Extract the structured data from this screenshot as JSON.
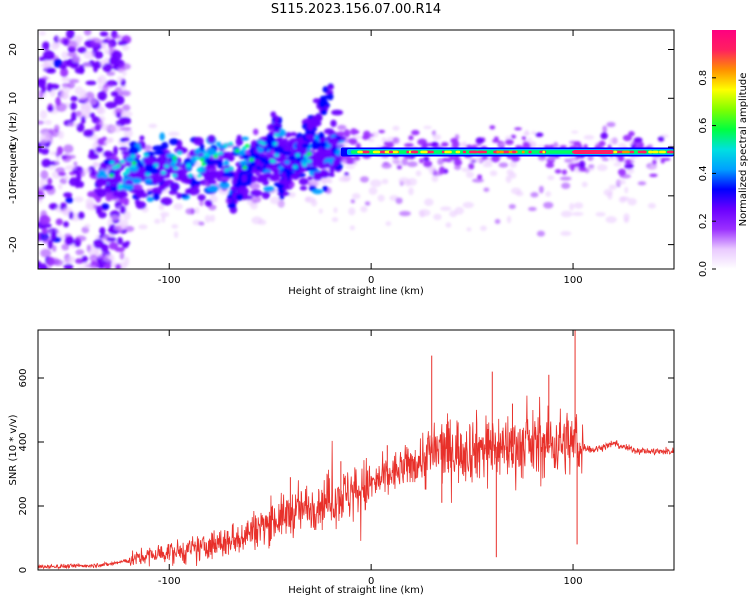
{
  "figure": {
    "title": "S115.2023.156.07.00.R14"
  },
  "chart_data": [
    {
      "type": "heatmap",
      "title": "",
      "xlabel": "Height of straight line (km)",
      "ylabel": "Frequency (Hz)",
      "xlim": [
        -165,
        150
      ],
      "ylim": [
        -25,
        24
      ],
      "xticks": [
        -100,
        0,
        100
      ],
      "yticks": [
        -20,
        -10,
        0,
        10,
        20
      ],
      "colorbar": {
        "label": "Normalized spectral amplitude",
        "range": [
          0.0,
          1.0
        ],
        "ticks": [
          0.0,
          0.2,
          0.4,
          0.6,
          0.8
        ],
        "colormap": [
          "#ffffff",
          "#e9c9ff",
          "#9b30ff",
          "#6a00ff",
          "#0000ff",
          "#00a0ff",
          "#00e0e0",
          "#00ff40",
          "#80ff00",
          "#ffff00",
          "#ff9000",
          "#ff2060",
          "#ff0080"
        ]
      },
      "features": {
        "stable_tone_frequency_hz": -1.0,
        "stable_tone_start_km": -15,
        "diffuse_region_km": [
          -165,
          -130
        ],
        "chirp_segments": [
          {
            "from_km": -70,
            "to_km": -45,
            "from_hz": -12,
            "to_hz": 6
          },
          {
            "from_km": -45,
            "to_km": -20,
            "from_hz": -9,
            "to_hz": 12
          }
        ]
      }
    },
    {
      "type": "line",
      "title": "",
      "xlabel": "Height of straight line (km)",
      "ylabel": "SNR (10 * v/v)",
      "xlim": [
        -165,
        150
      ],
      "ylim": [
        0,
        750
      ],
      "xticks": [
        -100,
        0,
        100
      ],
      "yticks": [
        0,
        200,
        400,
        600
      ],
      "series": [
        {
          "name": "SNR",
          "color": "#e8302a",
          "x": [
            -165,
            -150,
            -140,
            -130,
            -120,
            -110,
            -100,
            -90,
            -80,
            -70,
            -60,
            -50,
            -40,
            -30,
            -20,
            -10,
            0,
            10,
            20,
            25,
            30,
            35,
            40,
            50,
            60,
            70,
            80,
            90,
            95,
            100,
            103,
            105,
            110,
            120,
            130,
            140,
            150
          ],
          "values": [
            10,
            12,
            14,
            18,
            30,
            45,
            55,
            60,
            75,
            90,
            120,
            150,
            175,
            200,
            220,
            240,
            265,
            300,
            330,
            345,
            365,
            375,
            375,
            380,
            385,
            385,
            390,
            395,
            400,
            395,
            390,
            385,
            375,
            395,
            375,
            370,
            370
          ]
        }
      ],
      "spikes": [
        {
          "x": -40,
          "value": 290
        },
        {
          "x": -15,
          "value": 340
        },
        {
          "x": 8,
          "value": 390
        },
        {
          "x": 30,
          "value": 670
        },
        {
          "x": 35,
          "value": 210
        },
        {
          "x": 60,
          "value": 620
        },
        {
          "x": 62,
          "value": 40
        },
        {
          "x": 70,
          "value": 520
        },
        {
          "x": 88,
          "value": 610
        },
        {
          "x": 101,
          "value": 755
        },
        {
          "x": 102,
          "value": 80
        }
      ]
    }
  ]
}
